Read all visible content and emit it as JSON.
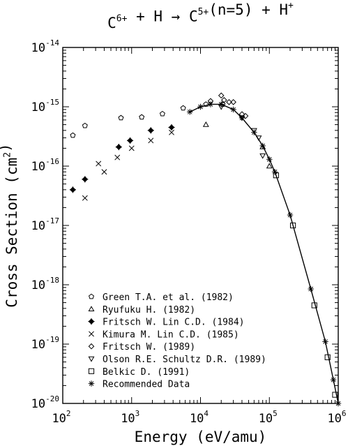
{
  "chart_data": {
    "type": "scatter",
    "title": {
      "parts": [
        {
          "t": "C",
          "sup": "6+"
        },
        {
          "t": " + H → C",
          "sup": "5+"
        },
        {
          "t": "(n=5) + H",
          "sup": "+"
        }
      ]
    },
    "xlabel": "Energy (eV/amu)",
    "ylabel_parts": [
      {
        "t": "Cross Section (cm",
        "sup": "2"
      },
      {
        "t": ")"
      }
    ],
    "xscale": "log",
    "yscale": "log",
    "xlim": [
      100,
      1000000
    ],
    "ylim": [
      1e-20,
      1e-14
    ],
    "x_tick_labels": [
      {
        "base": "10",
        "exp": "2",
        "value": 100
      },
      {
        "base": "10",
        "exp": "3",
        "value": 1000
      },
      {
        "base": "10",
        "exp": "4",
        "value": 10000
      },
      {
        "base": "10",
        "exp": "5",
        "value": 100000
      },
      {
        "base": "10",
        "exp": "6",
        "value": 1000000
      }
    ],
    "y_tick_labels": [
      {
        "base": "10",
        "exp": "-14",
        "value": 1e-14
      },
      {
        "base": "10",
        "exp": "-15",
        "value": 1e-15
      },
      {
        "base": "10",
        "exp": "-16",
        "value": 1e-16
      },
      {
        "base": "10",
        "exp": "-17",
        "value": 1e-17
      },
      {
        "base": "10",
        "exp": "-18",
        "value": 1e-18
      },
      {
        "base": "10",
        "exp": "-19",
        "value": 1e-19
      },
      {
        "base": "10",
        "exp": "-20",
        "value": 1e-20
      }
    ],
    "legend_position": "lower-left",
    "grid": false,
    "series": [
      {
        "name": "Green T.A. et al. (1982)",
        "marker": "pentagon",
        "x": [
          140,
          210,
          700,
          1400,
          2800,
          5600,
          12000,
          21000
        ],
        "y": [
          3.3e-16,
          4.8e-16,
          6.5e-16,
          6.7e-16,
          7.6e-16,
          9.5e-16,
          1.1e-15,
          1.1e-15
        ]
      },
      {
        "name": "Ryufuku H. (1982)",
        "marker": "triangle",
        "x": [
          12000,
          80000,
          100000
        ],
        "y": [
          5e-16,
          2.1e-16,
          1e-16
        ]
      },
      {
        "name": "Fritsch W. Lin C.D. (1984)",
        "marker": "cross-diamond",
        "x": [
          140,
          210,
          650,
          950,
          1900,
          3800
        ],
        "y": [
          4e-17,
          6e-17,
          2.1e-16,
          2.7e-16,
          4e-16,
          4.5e-16
        ]
      },
      {
        "name": "Kimura M. Lin C.D. (1985)",
        "marker": "x-cross",
        "x": [
          210,
          330,
          400,
          620,
          1000,
          1900,
          3800
        ],
        "y": [
          2.9e-17,
          1.1e-16,
          8e-17,
          1.4e-16,
          2e-16,
          2.7e-16,
          3.7e-16
        ]
      },
      {
        "name": "Fritsch W. (1989)",
        "marker": "diamond",
        "x": [
          14000,
          20000,
          22000,
          26000,
          30000,
          40000,
          45000
        ],
        "y": [
          1.25e-15,
          1.55e-15,
          1.3e-15,
          1.2e-15,
          1.2e-15,
          7.5e-16,
          7e-16
        ]
      },
      {
        "name": "Olson R.E. Schultz D.R. (1989)",
        "marker": "triangle-down",
        "x": [
          20000,
          40000,
          60000,
          70000,
          80000
        ],
        "y": [
          1e-15,
          6.5e-16,
          4e-16,
          3e-16,
          1.5e-16
        ]
      },
      {
        "name": "Belkic D. (1991)",
        "marker": "square",
        "x": [
          125000,
          220000,
          450000,
          700000,
          900000
        ],
        "y": [
          7e-17,
          1e-17,
          4.5e-19,
          6e-20,
          1.4e-20
        ]
      },
      {
        "name": "Recommended Data",
        "marker": "asterisk",
        "line": true,
        "x": [
          7000,
          10000,
          14000,
          20000,
          30000,
          40000,
          60000,
          80000,
          100000,
          120000,
          200000,
          400000,
          650000,
          850000,
          1000000
        ],
        "y": [
          8.2e-16,
          1e-15,
          1.1e-15,
          1.1e-15,
          9e-16,
          6.5e-16,
          3.7e-16,
          2.2e-16,
          1.3e-16,
          8e-17,
          1.5e-17,
          8.5e-19,
          1.1e-19,
          2.5e-20,
          1e-20
        ]
      }
    ]
  }
}
